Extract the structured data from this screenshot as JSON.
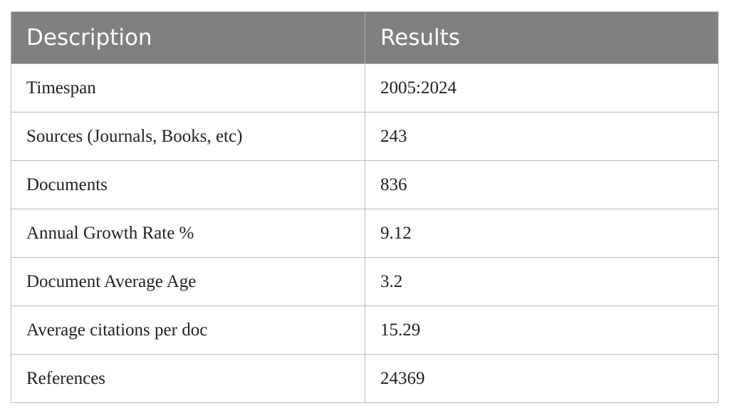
{
  "table": {
    "header": [
      "Description",
      "Results"
    ],
    "rows": [
      [
        "Timespan",
        "2005:2024"
      ],
      [
        "Sources (Journals, Books, etc)",
        "243"
      ],
      [
        "Documents",
        "836"
      ],
      [
        "Annual Growth Rate %",
        "9.12"
      ],
      [
        "Document Average Age",
        "3.2"
      ],
      [
        "Average citations per doc",
        "15.29"
      ],
      [
        "References",
        "24369"
      ]
    ]
  }
}
